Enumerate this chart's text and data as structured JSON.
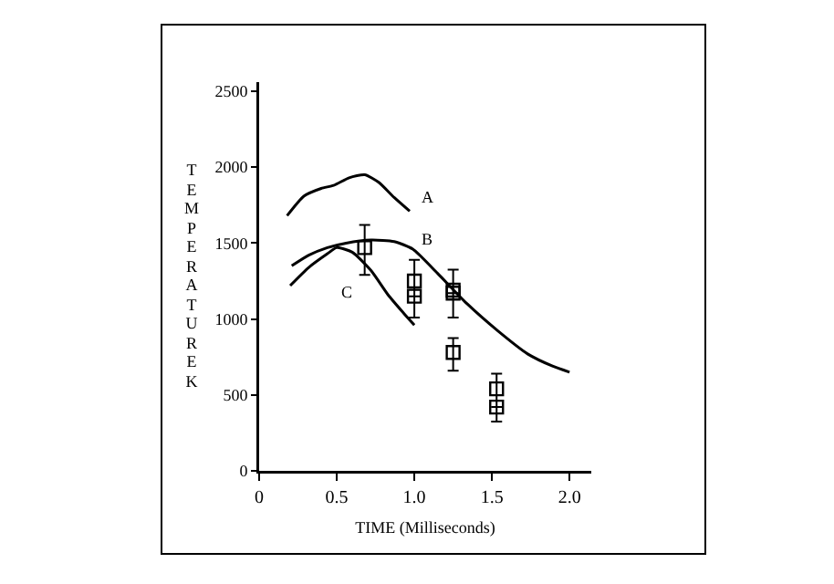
{
  "chart_data": {
    "type": "line",
    "xlabel": "TIME (Milliseconds)",
    "ylabel": "TEMPERATURE K",
    "xlim": [
      0,
      2.14
    ],
    "xticks": [
      {
        "value": 0,
        "label": "0"
      },
      0.5,
      {
        "value": 1,
        "label": "1.0"
      },
      1.5,
      {
        "value": 2,
        "label": "2.0"
      }
    ],
    "ylim": [
      0,
      2560
    ],
    "yticks": [
      0,
      500,
      1000,
      1500,
      2000,
      2500
    ],
    "grid": false,
    "legend": false,
    "line_style": "solid",
    "marker": "none",
    "series": [
      {
        "name": "A",
        "color": "#000000",
        "x": [
          0.18,
          0.29,
          0.4,
          0.48,
          0.58,
          0.68,
          0.77,
          0.87,
          0.97
        ],
        "values": [
          1680,
          1810,
          1860,
          1880,
          1930,
          1950,
          1900,
          1800,
          1710
        ]
      },
      {
        "name": "B",
        "color": "#000000",
        "x": [
          0.21,
          0.32,
          0.44,
          0.56,
          0.72,
          0.87,
          0.99,
          1.15,
          1.34,
          1.54,
          1.73,
          1.89,
          2.0
        ],
        "values": [
          1350,
          1420,
          1470,
          1500,
          1520,
          1510,
          1460,
          1300,
          1100,
          920,
          770,
          690,
          650
        ]
      },
      {
        "name": "C",
        "color": "#000000",
        "x": [
          0.2,
          0.32,
          0.44,
          0.5,
          0.6,
          0.72,
          0.83,
          0.93,
          1.0
        ],
        "values": [
          1220,
          1340,
          1430,
          1470,
          1440,
          1320,
          1160,
          1040,
          960
        ]
      },
      {
        "type": "scatter",
        "marker": "square",
        "color": "#000000",
        "x": [
          0.68,
          1.0,
          1.0,
          1.25,
          1.25,
          1.25,
          1.53,
          1.53
        ],
        "values": [
          1470,
          1250,
          1150,
          1190,
          1170,
          780,
          540,
          420
        ],
        "errors": [
          [
            1290,
            1620
          ],
          [
            1010,
            1390
          ],
          null,
          [
            1010,
            1325
          ],
          null,
          [
            660,
            875
          ],
          [
            325,
            640
          ],
          null
        ]
      }
    ]
  }
}
